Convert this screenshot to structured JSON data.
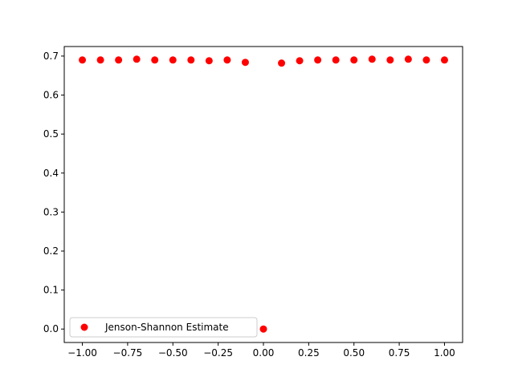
{
  "chart_data": {
    "type": "scatter",
    "title": "",
    "xlabel": "",
    "ylabel": "",
    "xlim": [
      -1.1,
      1.1
    ],
    "ylim": [
      -0.0345,
      0.7245
    ],
    "xticks": [
      -1.0,
      -0.75,
      -0.5,
      -0.25,
      0.0,
      0.25,
      0.5,
      0.75,
      1.0
    ],
    "xtick_labels": [
      "−1.00",
      "−0.75",
      "−0.50",
      "−0.25",
      "0.00",
      "0.25",
      "0.50",
      "0.75",
      "1.00"
    ],
    "yticks": [
      0.0,
      0.1,
      0.2,
      0.3,
      0.4,
      0.5,
      0.6,
      0.7
    ],
    "ytick_labels": [
      "0.0",
      "0.1",
      "0.2",
      "0.3",
      "0.4",
      "0.5",
      "0.6",
      "0.7"
    ],
    "grid": false,
    "legend_position": "lower-left",
    "series": [
      {
        "name": "Jenson-Shannon Estimate",
        "color": "#ff0000",
        "marker": "circle",
        "x": [
          -1.0,
          -0.9,
          -0.8,
          -0.7,
          -0.6,
          -0.5,
          -0.4,
          -0.3,
          -0.2,
          -0.1,
          0.0,
          0.1,
          0.2,
          0.3,
          0.4,
          0.5,
          0.6,
          0.7,
          0.8,
          0.9,
          1.0
        ],
        "y": [
          0.69,
          0.69,
          0.69,
          0.692,
          0.69,
          0.69,
          0.69,
          0.688,
          0.69,
          0.684,
          0.0,
          0.682,
          0.688,
          0.69,
          0.69,
          0.69,
          0.692,
          0.69,
          0.692,
          0.69,
          0.69
        ]
      }
    ]
  }
}
